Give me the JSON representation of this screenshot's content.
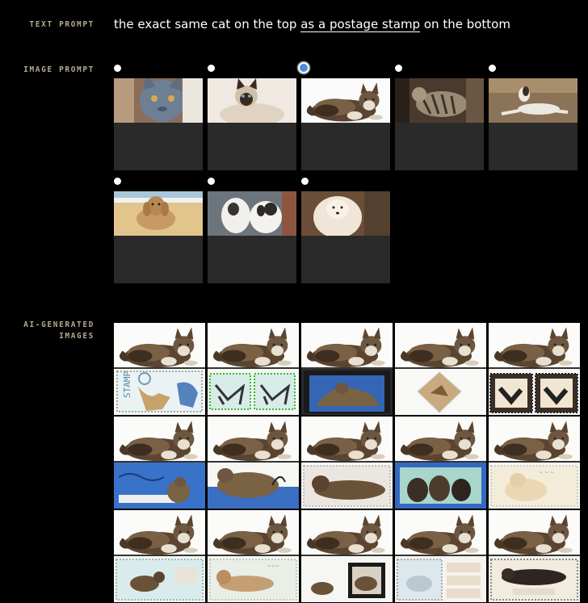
{
  "labels": {
    "text_prompt": "TEXT PROMPT",
    "image_prompt": "IMAGE PROMPT",
    "ai_generated_line1": "AI-GENERATED",
    "ai_generated_line2": "IMAGES"
  },
  "prompt": {
    "prefix": "the exact same cat on the top ",
    "variable": "as a postage stamp",
    "suffix": " on the bottom"
  },
  "image_prompt": {
    "selected_index": 2,
    "options": [
      {
        "subject": "blue-cat-photo"
      },
      {
        "subject": "siamese-cat-photo"
      },
      {
        "subject": "maine-coon-cat-photo"
      },
      {
        "subject": "tabby-cat-photo"
      },
      {
        "subject": "dog-on-floor-photo"
      },
      {
        "subject": "dog-on-beach-photo"
      },
      {
        "subject": "two-dogs-photo"
      },
      {
        "subject": "fluffy-dog-photo"
      }
    ]
  },
  "generated": [
    {
      "stamp": "text-stamp"
    },
    {
      "stamp": "pair-stamp"
    },
    {
      "stamp": "blue-stamp"
    },
    {
      "stamp": "diamond-stamp"
    },
    {
      "stamp": "dark-pair-stamp"
    },
    {
      "stamp": "blue-sea-stamp"
    },
    {
      "stamp": "cat-on-blue-stamp"
    },
    {
      "stamp": "long-cat-stamp"
    },
    {
      "stamp": "three-cats-stamp"
    },
    {
      "stamp": "cream-cat-stamp"
    },
    {
      "stamp": "small-cat-stamp"
    },
    {
      "stamp": "lying-cat-stamp"
    },
    {
      "stamp": "framed-cat-stamp"
    },
    {
      "stamp": "vintage-stamp"
    },
    {
      "stamp": "banner-cat-stamp"
    }
  ],
  "colors": {
    "label": "#b3a98e",
    "selected_radio": "#4a8ed9",
    "thumb_dark": "#2a2a2a",
    "background": "#000000"
  }
}
